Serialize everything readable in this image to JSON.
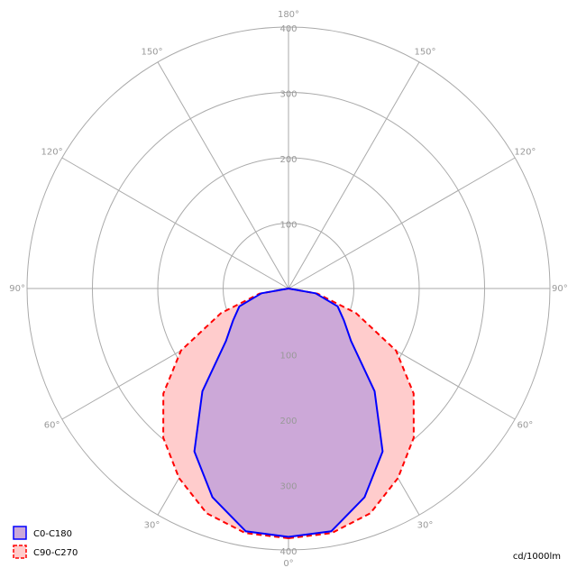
{
  "chart_data": {
    "type": "polar",
    "unit_label": "cd/1000lm",
    "x": [
      0,
      10,
      20,
      30,
      40,
      50,
      60,
      70,
      80,
      90
    ],
    "series": [
      {
        "name": "C90-C270",
        "color": "#ff0000",
        "fill": "#ffcccc",
        "dashed": true,
        "values": [
          382,
          380,
          366,
          335,
          298,
          250,
          190,
          110,
          45,
          0
        ]
      },
      {
        "name": "C0-C180",
        "color": "#0000ff",
        "fill": "#cca8d8",
        "dashed": false,
        "values": [
          380,
          377,
          340,
          288,
          205,
          125,
          98,
          80,
          42,
          0
        ]
      }
    ],
    "rlim": [
      0,
      400
    ],
    "rticks": [
      100,
      200,
      300,
      400
    ],
    "angle_ticks": [
      {
        "value": 0,
        "label": "0°"
      },
      {
        "value": 30,
        "label": "30°"
      },
      {
        "value": 60,
        "label": "60°"
      },
      {
        "value": 90,
        "label": "90°"
      },
      {
        "value": 120,
        "label": "120°"
      },
      {
        "value": 150,
        "label": "150°"
      },
      {
        "value": 180,
        "label": "180°"
      }
    ],
    "grid": true
  }
}
